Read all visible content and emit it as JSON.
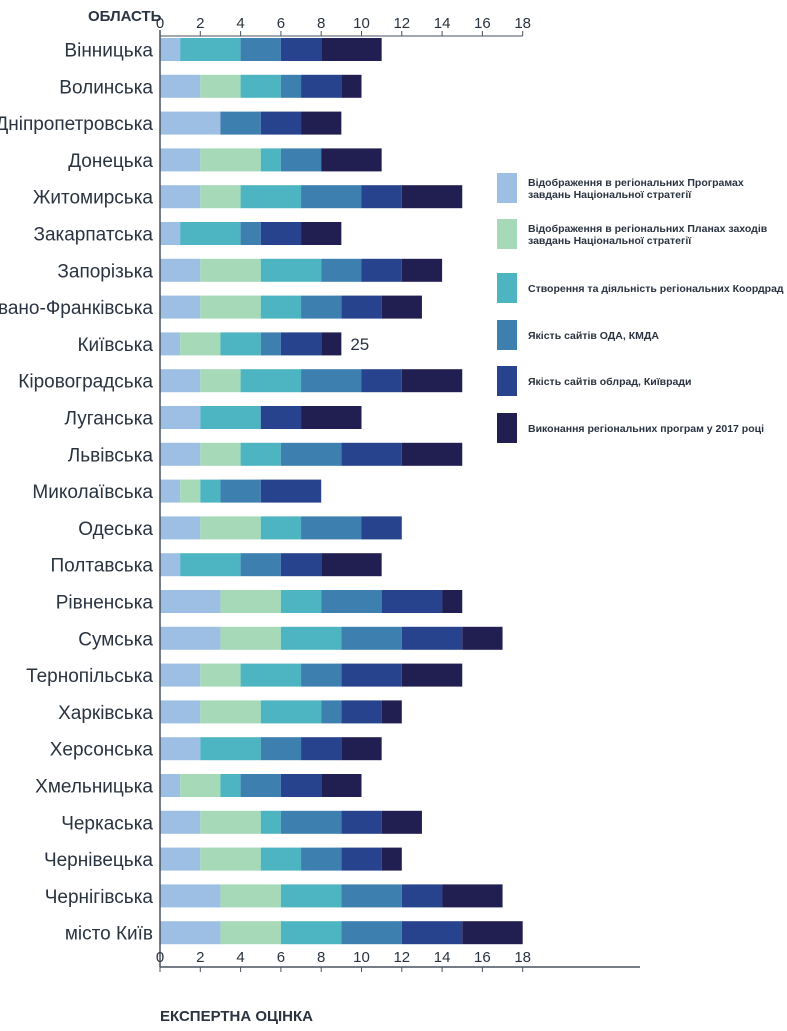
{
  "chart_data": {
    "type": "bar",
    "orientation": "horizontal",
    "stacked": true,
    "y_axis_title": "ОБЛАСТЬ",
    "x_axis_title": "ЕКСПЕРТНА ОЦІНКА",
    "xlim": [
      0,
      18
    ],
    "x_ticks": [
      "0",
      "2",
      "4",
      "6",
      "8",
      "10",
      "12",
      "14",
      "16",
      "18"
    ],
    "categories": [
      "Вінницька",
      "Волинська",
      "Дніпропетровська",
      "Донецька",
      "Житомирська",
      "Закарпатська",
      "Запорізька",
      "Івано-Франківська",
      "Київська",
      "Кіровоградська",
      "Луганська",
      "Львівська",
      "Миколаївська",
      "Одеська",
      "Полтавська",
      "Рівненська",
      "Сумська",
      "Тернопільська",
      "Харківська",
      "Херсонська",
      "Хмельницька",
      "Черкаська",
      "Чернівецька",
      "Чернігівська",
      "місто Київ"
    ],
    "series": [
      {
        "name": "Відображення в регіональних Програмах завдань Національної стратегії",
        "color": "#9dbfe3",
        "values": [
          1,
          2,
          3,
          2,
          2,
          1,
          2,
          2,
          1,
          2,
          2,
          2,
          1,
          2,
          1,
          3,
          3,
          2,
          2,
          2,
          1,
          2,
          2,
          3,
          3
        ]
      },
      {
        "name": "Відображення в регіональних Планах заходів завдань Національної стратегії",
        "color": "#a6d9b8",
        "values": [
          0,
          2,
          0,
          3,
          2,
          0,
          3,
          3,
          2,
          2,
          0,
          2,
          1,
          3,
          0,
          3,
          3,
          2,
          3,
          0,
          2,
          3,
          3,
          3,
          3
        ]
      },
      {
        "name": "Створення та діяльність регіональних Координаційних рад",
        "color": "#4db4c2",
        "values": [
          3,
          2,
          0,
          1,
          3,
          3,
          3,
          2,
          2,
          3,
          3,
          2,
          1,
          2,
          3,
          2,
          3,
          3,
          3,
          3,
          1,
          1,
          2,
          3,
          3
        ]
      },
      {
        "name": "Якість сайтів ОДА, КМДА",
        "color": "#3d7fae",
        "values": [
          2,
          1,
          2,
          2,
          3,
          1,
          2,
          2,
          1,
          3,
          0,
          3,
          2,
          3,
          2,
          3,
          3,
          2,
          1,
          2,
          2,
          3,
          2,
          3,
          3
        ]
      },
      {
        "name": "Якість сайтів облрад, Київради",
        "color": "#28438e",
        "values": [
          2,
          2,
          2,
          0,
          2,
          2,
          2,
          2,
          2,
          2,
          2,
          3,
          3,
          2,
          2,
          3,
          3,
          3,
          2,
          2,
          2,
          2,
          2,
          2,
          3
        ]
      },
      {
        "name": "Виконання регіональних програм у 2017 році",
        "color": "#211e52",
        "values": [
          3,
          1,
          2,
          3,
          3,
          2,
          2,
          2,
          1,
          3,
          3,
          3,
          0,
          0,
          3,
          1,
          2,
          3,
          1,
          2,
          2,
          2,
          1,
          3,
          3
        ]
      }
    ],
    "legend_display": [
      [
        "Відображення в регіональних Програмах",
        "завдань Національної стратегії"
      ],
      [
        "Відображення в регіональних Планах заходів",
        "завдань Національної стратегії"
      ],
      [
        "Створення та діяльність регіональних Коордрад"
      ],
      [
        "Якість сайтів ОДА, КМДА"
      ],
      [
        "Якість сайтів облрад, Київради"
      ],
      [
        "Виконання регіональних програм у 2017 році"
      ]
    ],
    "annotations": [
      {
        "category": "Київська",
        "text": "25"
      }
    ],
    "legend_position": "right",
    "grid": false
  }
}
